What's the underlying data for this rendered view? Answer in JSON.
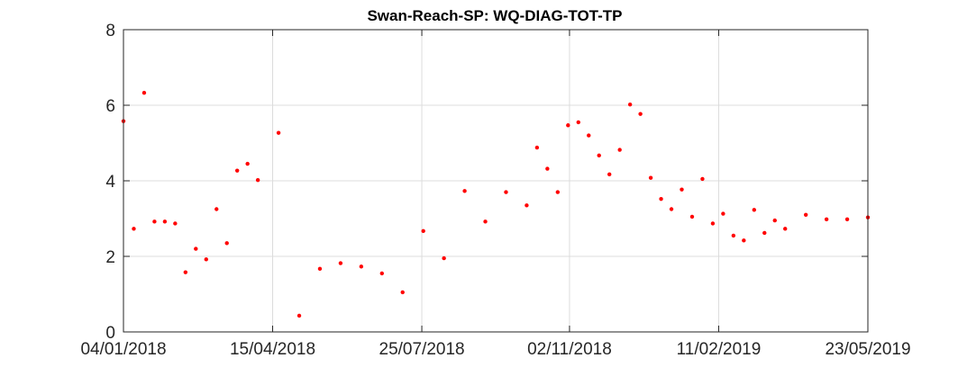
{
  "chart_data": {
    "type": "scatter",
    "title": "Swan-Reach-SP: WQ-DIAG-TOT-TP",
    "xlabel": "",
    "ylabel": "",
    "x_ticks": [
      "04/01/2018",
      "15/04/2018",
      "25/07/2018",
      "02/11/2018",
      "11/02/2019",
      "23/05/2019"
    ],
    "y_ticks": [
      "0",
      "2",
      "4",
      "6",
      "8"
    ],
    "xlim": [
      "2018-01-04",
      "2019-05-23"
    ],
    "ylim": [
      0,
      8
    ],
    "grid": true,
    "colors": {
      "marker": "#ff0000",
      "grid": "#dcdcdc",
      "axis": "#262626"
    },
    "series": [
      {
        "x": [
          "2018-01-04",
          "2018-01-11",
          "2018-01-18",
          "2018-01-25",
          "2018-02-01",
          "2018-02-08",
          "2018-02-15",
          "2018-02-22",
          "2018-03-01",
          "2018-03-08",
          "2018-03-15",
          "2018-03-22",
          "2018-03-29",
          "2018-04-05",
          "2018-04-19",
          "2018-05-03",
          "2018-05-17",
          "2018-05-31",
          "2018-06-14",
          "2018-06-28",
          "2018-07-12",
          "2018-07-26",
          "2018-08-09",
          "2018-08-23",
          "2018-09-06",
          "2018-09-20",
          "2018-10-04",
          "2018-10-11",
          "2018-10-18",
          "2018-10-25",
          "2018-11-01",
          "2018-11-08",
          "2018-11-15",
          "2018-11-22",
          "2018-11-29",
          "2018-12-06",
          "2018-12-13",
          "2018-12-20",
          "2018-12-27",
          "2019-01-03",
          "2019-01-10",
          "2019-01-17",
          "2019-01-24",
          "2019-01-31",
          "2019-02-07",
          "2019-02-14",
          "2019-02-21",
          "2019-02-28",
          "2019-03-07",
          "2019-03-14",
          "2019-03-21",
          "2019-03-28",
          "2019-04-11",
          "2019-04-25",
          "2019-05-09",
          "2019-05-23"
        ],
        "y": [
          5.58,
          2.73,
          6.33,
          2.92,
          2.92,
          2.87,
          1.58,
          2.2,
          1.92,
          3.25,
          2.35,
          4.27,
          4.45,
          4.02,
          5.27,
          0.43,
          1.67,
          1.82,
          1.73,
          1.55,
          1.05,
          2.67,
          1.95,
          3.73,
          2.92,
          3.7,
          3.35,
          4.88,
          4.32,
          3.7,
          5.47,
          5.55,
          5.2,
          4.67,
          4.17,
          4.82,
          6.02,
          5.77,
          4.08,
          3.52,
          3.25,
          3.77,
          3.05,
          4.05,
          2.87,
          3.13,
          2.55,
          2.42,
          3.23,
          2.62,
          2.95,
          2.73,
          3.1,
          2.98,
          2.98,
          3.03
        ]
      }
    ]
  }
}
